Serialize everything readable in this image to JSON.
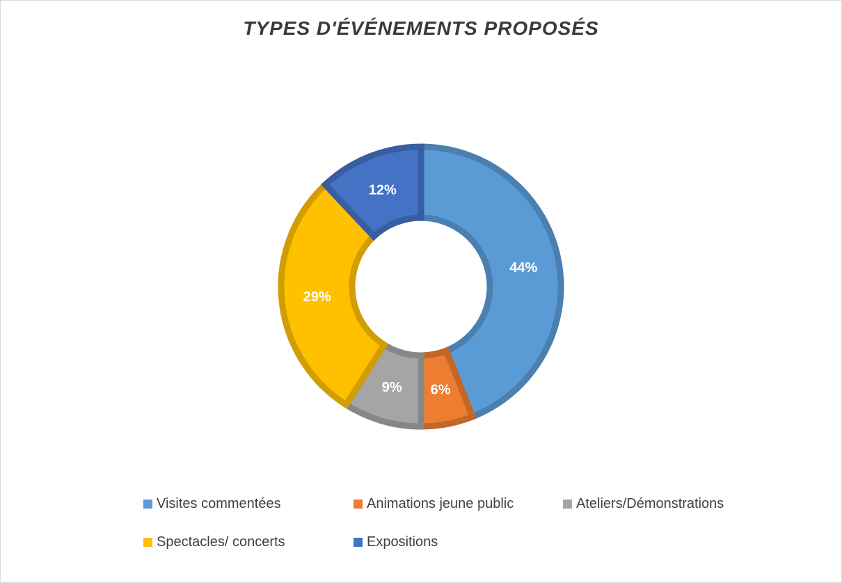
{
  "chart_data": {
    "type": "pie",
    "variant": "donut",
    "title": "TYPES D'ÉVÉNEMENTS PROPOSÉS",
    "categories": [
      "Visites commentées",
      "Animations jeune public",
      "Ateliers/Démonstrations",
      "Spectacles/ concerts",
      "Expositions"
    ],
    "values": [
      44,
      6,
      9,
      29,
      12
    ],
    "labels": [
      "44%",
      "6%",
      "9%",
      "29%",
      "12%"
    ],
    "colors": [
      "#5b9bd5",
      "#ed7d31",
      "#a5a5a5",
      "#ffc000",
      "#4472c4"
    ],
    "legend_position": "bottom"
  }
}
